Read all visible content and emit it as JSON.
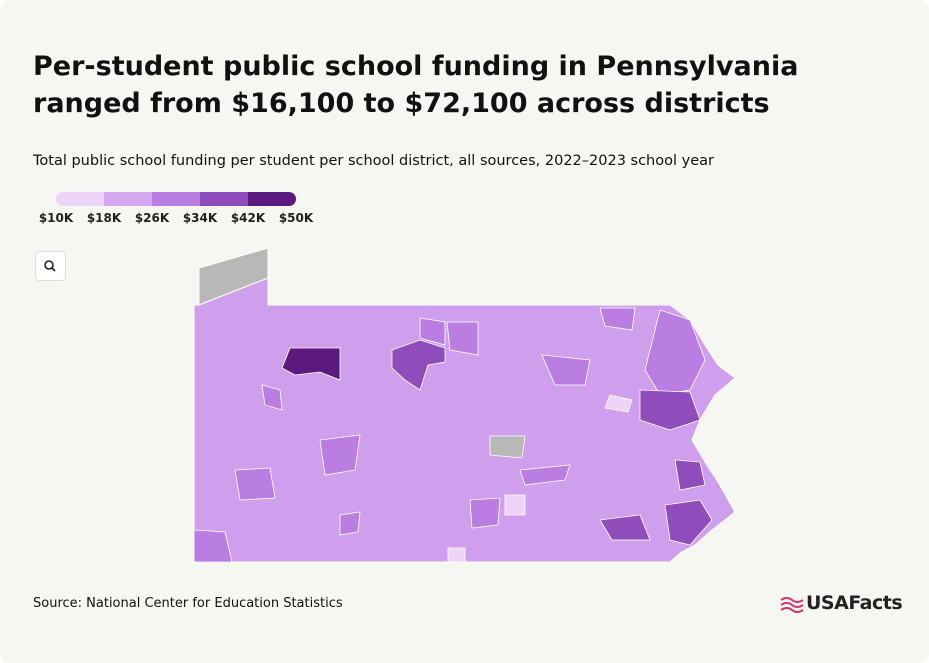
{
  "header": {
    "title": "Per-student public school funding in Pennsylvania ranged from $16,100 to $72,100 across districts",
    "subtitle": "Total public school funding per student per school district, all sources, 2022–2023 school year"
  },
  "legend": {
    "labels": [
      "$10K",
      "$18K",
      "$26K",
      "$34K",
      "$42K",
      "$50K"
    ],
    "colors": [
      "#ecd3f8",
      "#d4a9ef",
      "#ba7de2",
      "#8f4cbb",
      "#5c1a80"
    ]
  },
  "source": "Source: National Center for Education Statistics",
  "brand": "USAFacts"
}
